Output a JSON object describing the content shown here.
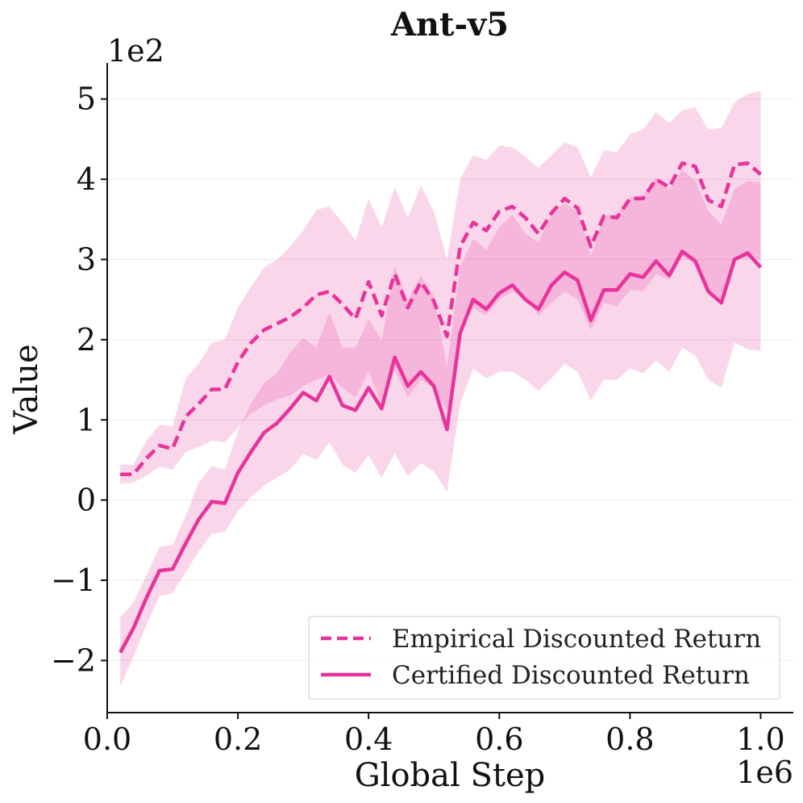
{
  "chart_data": {
    "type": "line",
    "title": "Ant-v5",
    "xlabel": "Global Step",
    "ylabel": "Value",
    "x_scale_label": "1e6",
    "y_scale_label": "1e2",
    "xlim": [
      0.0,
      1.05
    ],
    "ylim": [
      -2.65,
      5.45
    ],
    "x_ticks": [
      0.0,
      0.2,
      0.4,
      0.6,
      0.8,
      1.0
    ],
    "x_tick_labels": [
      "0.0",
      "0.2",
      "0.4",
      "0.6",
      "0.8",
      "1.0"
    ],
    "y_ticks": [
      -2,
      -1,
      0,
      1,
      2,
      3,
      4,
      5
    ],
    "y_tick_labels": [
      "−2",
      "−1",
      "0",
      "1",
      "2",
      "3",
      "4",
      "5"
    ],
    "grid": "horizontal",
    "legend_position": "lower-right",
    "color": "#e8339a",
    "x": [
      0.02,
      0.04,
      0.06,
      0.08,
      0.1,
      0.12,
      0.14,
      0.16,
      0.18,
      0.2,
      0.22,
      0.24,
      0.26,
      0.28,
      0.3,
      0.32,
      0.34,
      0.36,
      0.38,
      0.4,
      0.42,
      0.44,
      0.46,
      0.48,
      0.5,
      0.52,
      0.54,
      0.56,
      0.58,
      0.6,
      0.62,
      0.64,
      0.66,
      0.68,
      0.7,
      0.72,
      0.74,
      0.76,
      0.78,
      0.8,
      0.82,
      0.84,
      0.86,
      0.88,
      0.9,
      0.92,
      0.94,
      0.96,
      0.98,
      1.0
    ],
    "series": [
      {
        "name": "Empirical Discounted Return",
        "style": "dashed",
        "values": [
          0.32,
          0.32,
          0.52,
          0.68,
          0.64,
          1.04,
          1.2,
          1.38,
          1.38,
          1.72,
          1.96,
          2.12,
          2.2,
          2.28,
          2.4,
          2.56,
          2.6,
          2.44,
          2.26,
          2.72,
          2.3,
          2.82,
          2.4,
          2.72,
          2.48,
          2.04,
          3.16,
          3.46,
          3.36,
          3.6,
          3.66,
          3.52,
          3.32,
          3.58,
          3.76,
          3.64,
          3.16,
          3.54,
          3.52,
          3.76,
          3.76,
          4.0,
          3.9,
          4.2,
          4.16,
          3.74,
          3.66,
          4.18,
          4.2,
          4.06
        ],
        "lower": [
          0.2,
          0.22,
          0.3,
          0.42,
          0.38,
          0.6,
          0.66,
          0.74,
          0.72,
          0.9,
          1.08,
          1.18,
          1.26,
          1.3,
          1.42,
          1.5,
          1.56,
          1.4,
          1.28,
          1.6,
          1.2,
          1.62,
          1.28,
          1.5,
          1.4,
          1.1,
          2.1,
          2.4,
          2.3,
          2.5,
          2.6,
          2.52,
          2.3,
          2.46,
          2.6,
          2.5,
          2.12,
          2.46,
          2.42,
          2.62,
          2.6,
          2.82,
          2.74,
          3.02,
          2.96,
          2.6,
          2.5,
          3.0,
          3.02,
          3.0
        ],
        "upper": [
          0.44,
          0.44,
          0.74,
          0.94,
          0.92,
          1.52,
          1.7,
          1.96,
          2.0,
          2.4,
          2.66,
          2.9,
          3.0,
          3.16,
          3.36,
          3.62,
          3.66,
          3.46,
          3.24,
          3.76,
          3.4,
          3.9,
          3.52,
          3.92,
          3.6,
          3.0,
          4.0,
          4.3,
          4.24,
          4.42,
          4.4,
          4.28,
          4.14,
          4.3,
          4.46,
          4.4,
          4.02,
          4.36,
          4.34,
          4.56,
          4.62,
          4.84,
          4.7,
          4.86,
          4.9,
          4.62,
          4.64,
          4.96,
          5.06,
          5.1
        ]
      },
      {
        "name": "Certified Discounted Return",
        "style": "solid",
        "values": [
          -1.9,
          -1.6,
          -1.22,
          -0.88,
          -0.86,
          -0.54,
          -0.24,
          -0.02,
          -0.04,
          0.34,
          0.6,
          0.84,
          0.96,
          1.14,
          1.34,
          1.24,
          1.54,
          1.18,
          1.12,
          1.4,
          1.14,
          1.78,
          1.42,
          1.6,
          1.42,
          0.88,
          2.08,
          2.5,
          2.38,
          2.58,
          2.68,
          2.5,
          2.38,
          2.68,
          2.84,
          2.74,
          2.24,
          2.62,
          2.62,
          2.82,
          2.78,
          2.98,
          2.8,
          3.1,
          2.98,
          2.6,
          2.46,
          3.0,
          3.08,
          2.9
        ],
        "lower": [
          -2.32,
          -1.96,
          -1.56,
          -1.2,
          -1.16,
          -0.9,
          -0.64,
          -0.42,
          -0.4,
          -0.14,
          0.04,
          0.18,
          0.28,
          0.38,
          0.58,
          0.5,
          0.72,
          0.44,
          0.34,
          0.56,
          0.28,
          0.58,
          0.3,
          0.46,
          0.36,
          0.1,
          1.2,
          1.64,
          1.52,
          1.6,
          1.6,
          1.5,
          1.36,
          1.52,
          1.7,
          1.6,
          1.24,
          1.5,
          1.5,
          1.64,
          1.58,
          1.74,
          1.6,
          1.9,
          1.8,
          1.5,
          1.4,
          1.96,
          1.88,
          1.86
        ],
        "upper": [
          -1.46,
          -1.28,
          -0.94,
          -0.58,
          -0.56,
          -0.2,
          0.22,
          0.42,
          0.38,
          0.86,
          1.2,
          1.46,
          1.58,
          1.84,
          2.02,
          1.9,
          2.34,
          1.9,
          1.9,
          2.26,
          1.98,
          2.92,
          2.48,
          2.8,
          2.54,
          1.66,
          2.9,
          3.26,
          3.12,
          3.4,
          3.56,
          3.32,
          3.22,
          3.56,
          3.7,
          3.6,
          3.04,
          3.54,
          3.56,
          3.78,
          3.8,
          4.02,
          3.86,
          4.12,
          3.98,
          3.6,
          3.44,
          3.88,
          3.98,
          3.96
        ]
      }
    ]
  }
}
